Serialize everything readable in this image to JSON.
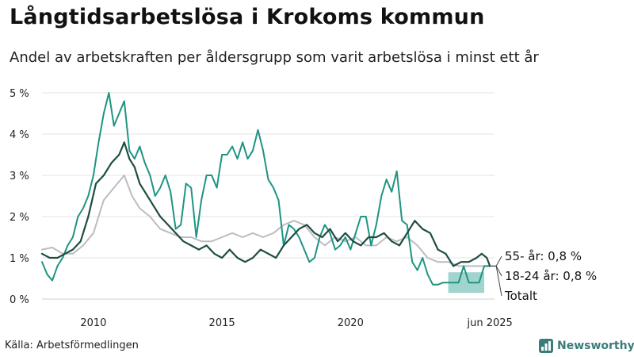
{
  "title": "Långtidsarbetslösa i Krokoms kommun",
  "subtitle": "Andel av arbetskraften per åldersgrupp som varit arbetslösa i minst ett år",
  "source": "Källa: Arbetsförmedlingen",
  "brand": {
    "name": "Newsworthy",
    "icon": "bar-chart-logo-icon",
    "color": "#3a7d78"
  },
  "chart_data": {
    "type": "line",
    "title": "Långtidsarbetslösa i Krokoms kommun",
    "xlabel": "",
    "ylabel": "",
    "xlim": [
      2008.0,
      2025.6
    ],
    "ylim": [
      0,
      5
    ],
    "grid": true,
    "y_ticks": [
      0,
      1,
      2,
      3,
      4,
      5
    ],
    "y_tick_labels": [
      "0 %",
      "1 %",
      "2 %",
      "3 %",
      "4 %",
      "5 %"
    ],
    "x_ticks": [
      2010,
      2015,
      2020,
      2025.42
    ],
    "x_tick_labels": [
      "2010",
      "2015",
      "2020",
      "jun 2025"
    ],
    "series": [
      {
        "name": "55- år",
        "label": "55- år: 0,8 %",
        "color": "#bdbbc3",
        "width": 2,
        "x": [
          2008.0,
          2008.4,
          2008.8,
          2009.2,
          2009.6,
          2010.0,
          2010.4,
          2010.8,
          2011.2,
          2011.5,
          2011.8,
          2012.2,
          2012.6,
          2013.0,
          2013.4,
          2013.8,
          2014.2,
          2014.6,
          2015.0,
          2015.4,
          2015.8,
          2016.2,
          2016.6,
          2017.0,
          2017.4,
          2017.8,
          2018.2,
          2018.6,
          2019.0,
          2019.4,
          2019.8,
          2020.2,
          2020.6,
          2021.0,
          2021.4,
          2021.8,
          2022.2,
          2022.6,
          2023.0,
          2023.4,
          2023.8,
          2024.2,
          2024.6,
          2025.0,
          2025.42
        ],
        "y": [
          1.2,
          1.25,
          1.1,
          1.1,
          1.3,
          1.6,
          2.4,
          2.7,
          3.0,
          2.5,
          2.2,
          2.0,
          1.7,
          1.6,
          1.5,
          1.5,
          1.4,
          1.4,
          1.5,
          1.6,
          1.5,
          1.6,
          1.5,
          1.6,
          1.8,
          1.9,
          1.8,
          1.5,
          1.3,
          1.5,
          1.4,
          1.5,
          1.3,
          1.3,
          1.5,
          1.4,
          1.5,
          1.3,
          1.0,
          0.9,
          0.9,
          0.8,
          0.8,
          0.8,
          0.8
        ]
      },
      {
        "name": "18-24 år",
        "label": "18-24 år: 0,8 %",
        "color": "#1e9483",
        "width": 2,
        "x": [
          2008.0,
          2008.2,
          2008.4,
          2008.6,
          2008.8,
          2009.0,
          2009.2,
          2009.4,
          2009.6,
          2009.8,
          2010.0,
          2010.2,
          2010.4,
          2010.6,
          2010.8,
          2011.0,
          2011.2,
          2011.4,
          2011.6,
          2011.8,
          2012.0,
          2012.2,
          2012.4,
          2012.6,
          2012.8,
          2013.0,
          2013.2,
          2013.4,
          2013.6,
          2013.8,
          2014.0,
          2014.2,
          2014.4,
          2014.6,
          2014.8,
          2015.0,
          2015.2,
          2015.4,
          2015.6,
          2015.8,
          2016.0,
          2016.2,
          2016.4,
          2016.6,
          2016.8,
          2017.0,
          2017.2,
          2017.4,
          2017.6,
          2017.8,
          2018.0,
          2018.2,
          2018.4,
          2018.6,
          2018.8,
          2019.0,
          2019.2,
          2019.4,
          2019.6,
          2019.8,
          2020.0,
          2020.2,
          2020.4,
          2020.6,
          2020.8,
          2021.0,
          2021.2,
          2021.4,
          2021.6,
          2021.8,
          2022.0,
          2022.2,
          2022.4,
          2022.6,
          2022.8,
          2023.0,
          2023.2,
          2023.4,
          2023.6,
          2023.8,
          2024.0,
          2024.2,
          2024.4,
          2024.6,
          2024.8,
          2025.0,
          2025.2,
          2025.42
        ],
        "y": [
          0.9,
          0.6,
          0.45,
          0.8,
          1.0,
          1.3,
          1.5,
          2.0,
          2.2,
          2.5,
          3.0,
          3.8,
          4.5,
          5.0,
          4.2,
          4.5,
          4.8,
          3.6,
          3.4,
          3.7,
          3.3,
          3.0,
          2.5,
          2.7,
          3.0,
          2.6,
          1.7,
          1.8,
          2.8,
          2.7,
          1.5,
          2.4,
          3.0,
          3.0,
          2.7,
          3.5,
          3.5,
          3.7,
          3.4,
          3.8,
          3.4,
          3.6,
          4.1,
          3.6,
          2.9,
          2.7,
          2.4,
          1.3,
          1.8,
          1.7,
          1.5,
          1.2,
          0.9,
          1.0,
          1.5,
          1.8,
          1.6,
          1.2,
          1.3,
          1.5,
          1.2,
          1.6,
          2.0,
          2.0,
          1.3,
          1.8,
          2.5,
          2.9,
          2.6,
          3.1,
          1.9,
          1.8,
          0.9,
          0.7,
          1.0,
          0.6,
          0.35,
          0.35,
          0.4,
          0.4,
          0.4,
          0.4,
          0.8,
          0.4,
          0.4,
          0.4,
          0.8,
          0.8
        ],
        "band": {
          "x_start": 2023.8,
          "x_end": 2025.2,
          "low": 0.15,
          "high": 0.65,
          "color": "#90cdc4"
        }
      },
      {
        "name": "Totalt",
        "label": "Totalt",
        "color": "#1f4d40",
        "width": 2.2,
        "x": [
          2008.0,
          2008.3,
          2008.6,
          2008.9,
          2009.2,
          2009.5,
          2009.8,
          2010.1,
          2010.4,
          2010.7,
          2011.0,
          2011.2,
          2011.4,
          2011.6,
          2011.8,
          2012.0,
          2012.3,
          2012.6,
          2012.9,
          2013.2,
          2013.5,
          2013.8,
          2014.1,
          2014.4,
          2014.7,
          2015.0,
          2015.3,
          2015.6,
          2015.9,
          2016.2,
          2016.5,
          2016.8,
          2017.1,
          2017.4,
          2017.7,
          2018.0,
          2018.3,
          2018.6,
          2018.9,
          2019.2,
          2019.5,
          2019.8,
          2020.1,
          2020.4,
          2020.7,
          2021.0,
          2021.3,
          2021.6,
          2021.9,
          2022.2,
          2022.5,
          2022.8,
          2023.1,
          2023.4,
          2023.7,
          2024.0,
          2024.3,
          2024.6,
          2024.9,
          2025.1,
          2025.3,
          2025.42
        ],
        "y": [
          1.1,
          1.0,
          1.0,
          1.1,
          1.2,
          1.4,
          2.0,
          2.8,
          3.0,
          3.3,
          3.5,
          3.8,
          3.4,
          3.2,
          2.8,
          2.6,
          2.3,
          2.0,
          1.8,
          1.6,
          1.4,
          1.3,
          1.2,
          1.3,
          1.1,
          1.0,
          1.2,
          1.0,
          0.9,
          1.0,
          1.2,
          1.1,
          1.0,
          1.3,
          1.5,
          1.7,
          1.8,
          1.6,
          1.5,
          1.7,
          1.4,
          1.6,
          1.4,
          1.3,
          1.5,
          1.5,
          1.6,
          1.4,
          1.3,
          1.6,
          1.9,
          1.7,
          1.6,
          1.2,
          1.1,
          0.8,
          0.9,
          0.9,
          1.0,
          1.1,
          1.0,
          0.8
        ]
      }
    ]
  }
}
